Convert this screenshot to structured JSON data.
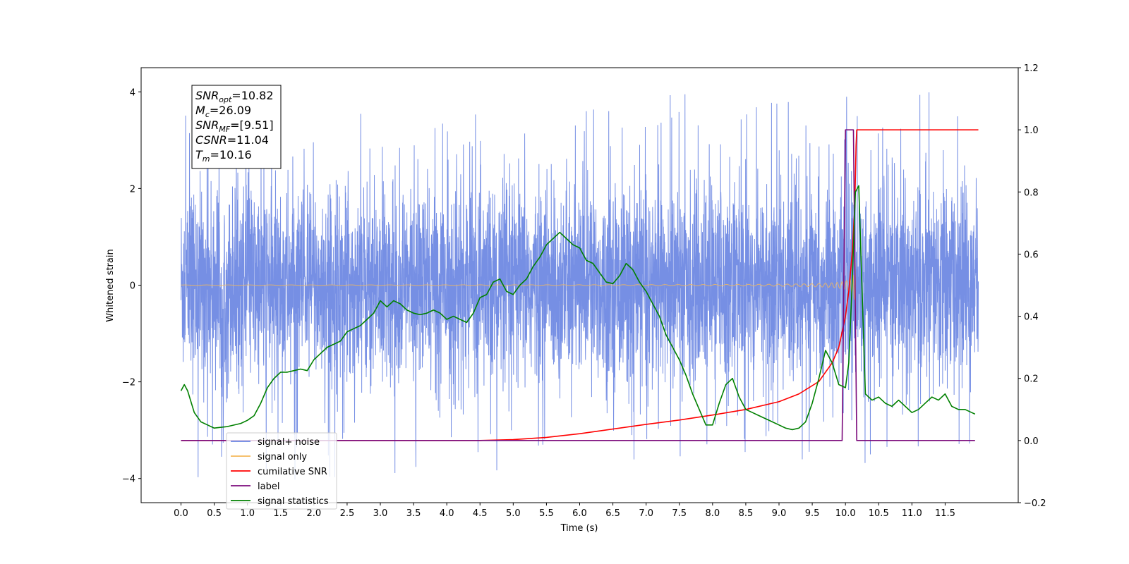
{
  "chart_data": {
    "type": "line",
    "xlabel": "Time (s)",
    "ylabel_left": "Whitened strain",
    "x_ticks": [
      "0.0",
      "0.5",
      "1.0",
      "1.5",
      "2.0",
      "2.5",
      "3.0",
      "3.5",
      "4.0",
      "4.5",
      "5.0",
      "5.5",
      "6.0",
      "6.5",
      "7.0",
      "7.5",
      "8.0",
      "8.5",
      "9.0",
      "9.5",
      "10.0",
      "10.5",
      "11.0",
      "11.5"
    ],
    "xlim": [
      -0.6,
      12.6
    ],
    "ylim_left": [
      -4.5,
      4.5
    ],
    "ylim_right": [
      -0.2,
      1.2
    ],
    "y_ticks_left": [
      -4,
      -2,
      0,
      2,
      4
    ],
    "y_ticks_right": [
      "−0.2",
      "0.0",
      "0.2",
      "0.4",
      "0.6",
      "0.8",
      "1.0",
      "1.2"
    ],
    "y_ticks_left_labels": [
      "−4",
      "−2",
      "0",
      "2",
      "4"
    ],
    "annotations": [
      {
        "label": "SNR",
        "sub": "opt",
        "value": "=10.82"
      },
      {
        "label": "M",
        "sub": "c",
        "value": "=26.09"
      },
      {
        "label": "SNR",
        "sub": "MF",
        "value": "=[9.51]"
      },
      {
        "label": "CSNR",
        "sub": "",
        "value": "=11.04"
      },
      {
        "label": "T",
        "sub": "m",
        "value": "=10.16"
      }
    ],
    "legend_placement": "lower-left",
    "series": [
      {
        "name": "signal+ noise",
        "color": "#6a86e2",
        "axis": "left",
        "kind": "noise",
        "x_start": 0.0,
        "x_end": 12.0,
        "std": 1.0,
        "peak_max": 4.1,
        "peak_min": -4.1
      },
      {
        "name": "signal only",
        "color": "#f5b85a",
        "axis": "left",
        "kind": "chirp",
        "x_start": 0.0,
        "x_end": 10.16,
        "merger_time": 10.16,
        "max_amplitude": 0.75
      },
      {
        "name": "cumilative SNR",
        "color": "#ff0000",
        "axis": "right",
        "x": [
          0.0,
          4.5,
          5.0,
          5.5,
          6.0,
          6.5,
          7.0,
          7.5,
          8.0,
          8.5,
          9.0,
          9.3,
          9.6,
          9.8,
          9.9,
          10.0,
          10.05,
          10.1,
          10.14,
          10.16,
          10.17,
          12.0
        ],
        "y": [
          0.0,
          0.0,
          0.003,
          0.01,
          0.022,
          0.037,
          0.052,
          0.066,
          0.082,
          0.1,
          0.125,
          0.15,
          0.19,
          0.25,
          0.3,
          0.4,
          0.48,
          0.6,
          0.75,
          0.95,
          1.0,
          1.0
        ]
      },
      {
        "name": "label",
        "color": "#7b0a7b",
        "axis": "right",
        "x": [
          0.0,
          9.95,
          10.0,
          10.12,
          10.17,
          11.95
        ],
        "y": [
          0.0,
          0.0,
          1.0,
          1.0,
          0.0,
          0.0
        ]
      },
      {
        "name": "signal statistics",
        "color": "#008000",
        "axis": "right",
        "x": [
          0.0,
          0.05,
          0.1,
          0.2,
          0.3,
          0.4,
          0.5,
          0.7,
          0.9,
          1.0,
          1.1,
          1.2,
          1.3,
          1.4,
          1.5,
          1.6,
          1.7,
          1.8,
          1.9,
          2.0,
          2.1,
          2.2,
          2.3,
          2.4,
          2.5,
          2.6,
          2.7,
          2.8,
          2.9,
          3.0,
          3.1,
          3.2,
          3.3,
          3.4,
          3.5,
          3.6,
          3.7,
          3.8,
          3.9,
          4.0,
          4.1,
          4.2,
          4.3,
          4.4,
          4.5,
          4.6,
          4.7,
          4.8,
          4.9,
          5.0,
          5.1,
          5.2,
          5.3,
          5.4,
          5.5,
          5.6,
          5.7,
          5.8,
          5.9,
          6.0,
          6.1,
          6.2,
          6.3,
          6.4,
          6.5,
          6.6,
          6.7,
          6.8,
          6.9,
          7.0,
          7.1,
          7.2,
          7.3,
          7.4,
          7.5,
          7.6,
          7.7,
          7.8,
          7.9,
          8.0,
          8.1,
          8.2,
          8.3,
          8.4,
          8.5,
          8.6,
          8.7,
          8.8,
          8.9,
          9.0,
          9.1,
          9.2,
          9.3,
          9.4,
          9.5,
          9.6,
          9.7,
          9.8,
          9.9,
          10.0,
          10.05,
          10.1,
          10.15,
          10.2,
          10.3,
          10.4,
          10.5,
          10.6,
          10.7,
          10.8,
          10.9,
          11.0,
          11.1,
          11.2,
          11.3,
          11.4,
          11.5,
          11.6,
          11.7,
          11.8,
          11.9,
          11.95
        ],
        "y": [
          0.16,
          0.18,
          0.16,
          0.09,
          0.06,
          0.05,
          0.04,
          0.045,
          0.055,
          0.065,
          0.08,
          0.12,
          0.17,
          0.2,
          0.22,
          0.22,
          0.225,
          0.23,
          0.225,
          0.26,
          0.28,
          0.3,
          0.31,
          0.32,
          0.35,
          0.36,
          0.37,
          0.39,
          0.41,
          0.45,
          0.43,
          0.45,
          0.44,
          0.42,
          0.41,
          0.405,
          0.41,
          0.42,
          0.41,
          0.39,
          0.4,
          0.39,
          0.38,
          0.41,
          0.46,
          0.47,
          0.51,
          0.52,
          0.48,
          0.47,
          0.5,
          0.52,
          0.56,
          0.59,
          0.63,
          0.65,
          0.67,
          0.65,
          0.63,
          0.62,
          0.58,
          0.57,
          0.54,
          0.51,
          0.505,
          0.53,
          0.57,
          0.55,
          0.51,
          0.48,
          0.44,
          0.4,
          0.34,
          0.3,
          0.26,
          0.21,
          0.15,
          0.1,
          0.05,
          0.05,
          0.12,
          0.18,
          0.2,
          0.14,
          0.1,
          0.09,
          0.08,
          0.07,
          0.06,
          0.05,
          0.04,
          0.035,
          0.04,
          0.06,
          0.12,
          0.2,
          0.29,
          0.25,
          0.18,
          0.17,
          0.25,
          0.5,
          0.8,
          0.82,
          0.15,
          0.13,
          0.14,
          0.12,
          0.11,
          0.13,
          0.11,
          0.09,
          0.1,
          0.12,
          0.14,
          0.13,
          0.15,
          0.11,
          0.1,
          0.1,
          0.09,
          0.085
        ]
      }
    ]
  }
}
